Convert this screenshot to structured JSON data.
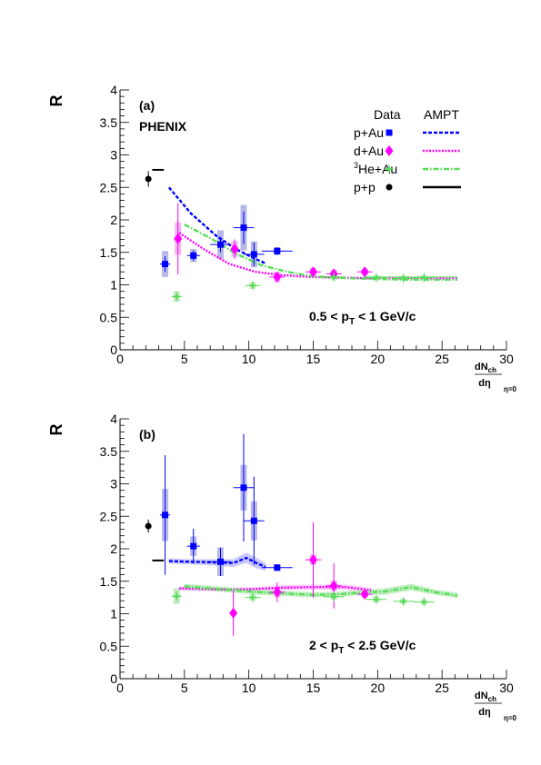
{
  "chart_data": [
    {
      "type": "scatter",
      "panel_label": "(a)",
      "experiment": "PHENIX",
      "ylabel": "R",
      "xlabel": {
        "num": "dN",
        "num_sub": "ch",
        "den": "dη",
        "sub": "η=0"
      },
      "xlim": [
        0,
        30
      ],
      "ylim": [
        0,
        4
      ],
      "xticks": [
        0,
        5,
        10,
        15,
        20,
        25,
        30
      ],
      "yticks": [
        0,
        0.5,
        1,
        1.5,
        2,
        2.5,
        3,
        3.5,
        4
      ],
      "ytick_labels": [
        "0",
        "0.5",
        "1",
        "1.5",
        "2",
        "2.5",
        "3",
        "3.5",
        "4"
      ],
      "range_label": {
        "pre": "0.5 < p",
        "sub": "T",
        "post": " < 1 GeV/c"
      },
      "legend": {
        "col_data": "Data",
        "col_model": "AMPT",
        "entries": [
          {
            "label": "p+Au",
            "color": "#0000ff",
            "marker": "square",
            "dash": "4,2"
          },
          {
            "label": "d+Au",
            "color": "#ff00ff",
            "marker": "diamond",
            "dash": "2,1.5"
          },
          {
            "label": "He+Au",
            "sup": "3",
            "color": "#55dd55",
            "marker": "cross",
            "dash": "6,2,1.5,2"
          },
          {
            "label": "p+p",
            "color": "#000000",
            "marker": "circle",
            "dash": ""
          }
        ]
      },
      "series": [
        {
          "name": "p+Au",
          "color": "#0000ff",
          "marker": "square",
          "points": [
            {
              "x": 3.5,
              "y": 1.32,
              "ey": 0.12,
              "ex": 0.4,
              "sys": 0.2
            },
            {
              "x": 5.7,
              "y": 1.45,
              "ey": 0.08,
              "ex": 0.5,
              "sys": 0.1
            },
            {
              "x": 7.8,
              "y": 1.62,
              "ey": 0.12,
              "ex": 0.8,
              "sys": 0.22
            },
            {
              "x": 9.6,
              "y": 1.88,
              "ey": 0.25,
              "ex": 0.8,
              "sys": 0.35
            },
            {
              "x": 10.4,
              "y": 1.47,
              "ey": 0.18,
              "ex": 0.8,
              "sys": 0.2
            },
            {
              "x": 12.2,
              "y": 1.52,
              "ey": 0.06,
              "ex": 1.2,
              "sys": 0.06
            }
          ]
        },
        {
          "name": "d+Au",
          "color": "#ff00ff",
          "marker": "diamond",
          "points": [
            {
              "x": 4.5,
              "y": 1.71,
              "ey": 0.55,
              "ex": 0.0,
              "sys": 0.25
            },
            {
              "x": 8.9,
              "y": 1.55,
              "ey": 0.15,
              "ex": 0.0,
              "sys": 0.12
            },
            {
              "x": 12.2,
              "y": 1.12,
              "ey": 0.08,
              "ex": 0.6,
              "sys": 0.08
            },
            {
              "x": 15.0,
              "y": 1.2,
              "ey": 0.07,
              "ex": 0.6,
              "sys": 0.06
            },
            {
              "x": 16.6,
              "y": 1.17,
              "ey": 0.07,
              "ex": 0.6,
              "sys": 0.06
            },
            {
              "x": 19.0,
              "y": 1.2,
              "ey": 0.05,
              "ex": 0.6,
              "sys": 0.05
            }
          ]
        },
        {
          "name": "3He+Au",
          "color": "#55dd55",
          "marker": "cross",
          "points": [
            {
              "x": 4.4,
              "y": 0.82,
              "ey": 0.06,
              "ex": 0.4,
              "sys": 0.08
            },
            {
              "x": 10.3,
              "y": 0.99,
              "ey": 0.05,
              "ex": 0.6,
              "sys": 0.05
            },
            {
              "x": 16.6,
              "y": 1.12,
              "ey": 0.04,
              "ex": 0.8,
              "sys": 0.05
            },
            {
              "x": 19.9,
              "y": 1.11,
              "ey": 0.04,
              "ex": 0.8,
              "sys": 0.04
            },
            {
              "x": 22.0,
              "y": 1.1,
              "ey": 0.04,
              "ex": 0.8,
              "sys": 0.04
            },
            {
              "x": 23.6,
              "y": 1.11,
              "ey": 0.04,
              "ex": 0.8,
              "sys": 0.04
            }
          ]
        },
        {
          "name": "p+p",
          "color": "#000000",
          "marker": "circle",
          "points": [
            {
              "x": 2.2,
              "y": 2.63,
              "ey": 0.12,
              "ex": 0.0,
              "sys": 0.0
            }
          ]
        }
      ],
      "model": [
        {
          "name": "p+Au",
          "color": "#0000ff",
          "dash": "4,2",
          "band": false,
          "x": [
            3.8,
            5.5,
            7.5,
            9.0,
            10.5,
            11.3
          ],
          "y": [
            2.5,
            2.1,
            1.75,
            1.55,
            1.4,
            1.33
          ]
        },
        {
          "name": "d+Au",
          "color": "#ff00ff",
          "dash": "2,1.5",
          "band": false,
          "x": [
            4.6,
            6.5,
            8.5,
            10.5,
            12.5,
            15,
            20,
            26.2
          ],
          "y": [
            1.8,
            1.55,
            1.32,
            1.2,
            1.15,
            1.12,
            1.1,
            1.1
          ]
        },
        {
          "name": "3He+Au",
          "color": "#55dd55",
          "dash": "6,2,1.5,2",
          "band": false,
          "x": [
            5.0,
            7.0,
            9.0,
            11.0,
            13.0,
            15.0,
            18.0,
            22.0,
            26.2
          ],
          "y": [
            1.93,
            1.72,
            1.48,
            1.3,
            1.2,
            1.13,
            1.1,
            1.08,
            1.08
          ]
        },
        {
          "name": "p+p",
          "color": "#000000",
          "dash": "",
          "band": false,
          "x": [
            2.5,
            3.4
          ],
          "y": [
            2.77,
            2.77
          ]
        }
      ],
      "curve_paths": [
        {
          "color": "#55dd55",
          "x": [
            19.0,
            26.2
          ],
          "y": [
            1.12,
            1.12
          ]
        }
      ]
    },
    {
      "type": "scatter",
      "panel_label": "(b)",
      "ylabel": "R",
      "xlabel": {
        "num": "dN",
        "num_sub": "ch",
        "den": "dη",
        "sub": "η=0"
      },
      "xlim": [
        0,
        30
      ],
      "ylim": [
        0,
        4
      ],
      "xticks": [
        0,
        5,
        10,
        15,
        20,
        25,
        30
      ],
      "yticks": [
        0,
        0.5,
        1,
        1.5,
        2,
        2.5,
        3,
        3.5,
        4
      ],
      "ytick_labels": [
        "0",
        "0.5",
        "1",
        "1.5",
        "2",
        "2.5",
        "3",
        "3.5",
        "4"
      ],
      "range_label": {
        "pre": "2 < p",
        "sub": "T",
        "post": " < 2.5 GeV/c"
      },
      "series": [
        {
          "name": "p+Au",
          "color": "#0000ff",
          "marker": "square",
          "points": [
            {
              "x": 3.5,
              "y": 2.52,
              "ey": 0.92,
              "ex": 0.4,
              "sys": 0.4
            },
            {
              "x": 5.7,
              "y": 2.04,
              "ey": 0.27,
              "ex": 0.5,
              "sys": 0.15
            },
            {
              "x": 7.8,
              "y": 1.8,
              "ey": 0.22,
              "ex": 0.8,
              "sys": 0.22
            },
            {
              "x": 9.6,
              "y": 2.94,
              "ey": 0.83,
              "ex": 0.8,
              "sys": 0.35
            },
            {
              "x": 10.4,
              "y": 2.43,
              "ey": 0.68,
              "ex": 0.8,
              "sys": 0.3
            },
            {
              "x": 12.2,
              "y": 1.71,
              "ey": 0.05,
              "ex": 1.2,
              "sys": 0.05
            }
          ]
        },
        {
          "name": "d+Au",
          "color": "#ff00ff",
          "marker": "diamond",
          "points": [
            {
              "x": 8.8,
              "y": 1.01,
              "ey": 0.35,
              "ex": 0.3,
              "sys": 0.0
            },
            {
              "x": 12.2,
              "y": 1.33,
              "ey": 0.15,
              "ex": 0.6,
              "sys": 0.08
            },
            {
              "x": 15.0,
              "y": 1.83,
              "ey": 0.58,
              "ex": 0.6,
              "sys": 0.08
            },
            {
              "x": 16.6,
              "y": 1.43,
              "ey": 0.35,
              "ex": 0.6,
              "sys": 0.08
            },
            {
              "x": 19.0,
              "y": 1.3,
              "ey": 0.05,
              "ex": 0.6,
              "sys": 0.05
            }
          ]
        },
        {
          "name": "3He+Au",
          "color": "#55dd55",
          "marker": "cross",
          "points": [
            {
              "x": 4.4,
              "y": 1.27,
              "ey": 0.07,
              "ex": 0.4,
              "sys": 0.12
            },
            {
              "x": 10.3,
              "y": 1.25,
              "ey": 0.05,
              "ex": 0.6,
              "sys": 0.05
            },
            {
              "x": 16.6,
              "y": 1.26,
              "ey": 0.04,
              "ex": 0.8,
              "sys": 0.05
            },
            {
              "x": 19.9,
              "y": 1.22,
              "ey": 0.04,
              "ex": 0.8,
              "sys": 0.05
            },
            {
              "x": 22.0,
              "y": 1.19,
              "ey": 0.04,
              "ex": 0.8,
              "sys": 0.04
            },
            {
              "x": 23.6,
              "y": 1.18,
              "ey": 0.04,
              "ex": 0.8,
              "sys": 0.04
            }
          ]
        },
        {
          "name": "p+p",
          "color": "#000000",
          "marker": "circle",
          "points": [
            {
              "x": 2.2,
              "y": 2.35,
              "ey": 0.1,
              "ex": 0.0,
              "sys": 0.0
            }
          ]
        }
      ],
      "model": [
        {
          "name": "p+Au",
          "color": "#0000ff",
          "dash": "4,2",
          "band": true,
          "band_color": "#c8c8ff",
          "x": [
            3.8,
            5.5,
            7.5,
            8.8,
            9.8,
            10.6,
            11.3
          ],
          "y": [
            1.81,
            1.8,
            1.79,
            1.78,
            1.86,
            1.78,
            1.72
          ],
          "err": [
            0.04,
            0.04,
            0.05,
            0.06,
            0.08,
            0.08,
            0.06
          ]
        },
        {
          "name": "d+Au",
          "color": "#ff00ff",
          "dash": "2,1.5",
          "band": true,
          "band_color": "#ffccff",
          "x": [
            4.6,
            6.5,
            8.5,
            10.5,
            12.5,
            15,
            17.5,
            19.5
          ],
          "y": [
            1.39,
            1.38,
            1.37,
            1.38,
            1.4,
            1.41,
            1.41,
            1.36
          ],
          "err": [
            0.03,
            0.03,
            0.03,
            0.03,
            0.04,
            0.04,
            0.04,
            0.04
          ]
        },
        {
          "name": "3He+Au",
          "color": "#55dd55",
          "dash": "6,2,1.5,2",
          "band": true,
          "band_color": "#bfeebf",
          "x": [
            5.0,
            7.0,
            9.0,
            11.0,
            13.0,
            15.0,
            17.0,
            19.0,
            20.5,
            22.6,
            24.5,
            26.2
          ],
          "y": [
            1.42,
            1.39,
            1.36,
            1.33,
            1.31,
            1.29,
            1.3,
            1.33,
            1.34,
            1.41,
            1.33,
            1.28
          ],
          "err": [
            0.04,
            0.04,
            0.04,
            0.04,
            0.04,
            0.04,
            0.04,
            0.04,
            0.05,
            0.05,
            0.04,
            0.04
          ]
        },
        {
          "name": "p+p",
          "color": "#000000",
          "dash": "",
          "band": false,
          "x": [
            2.5,
            3.4
          ],
          "y": [
            1.82,
            1.82
          ]
        }
      ],
      "curve_paths": []
    }
  ]
}
